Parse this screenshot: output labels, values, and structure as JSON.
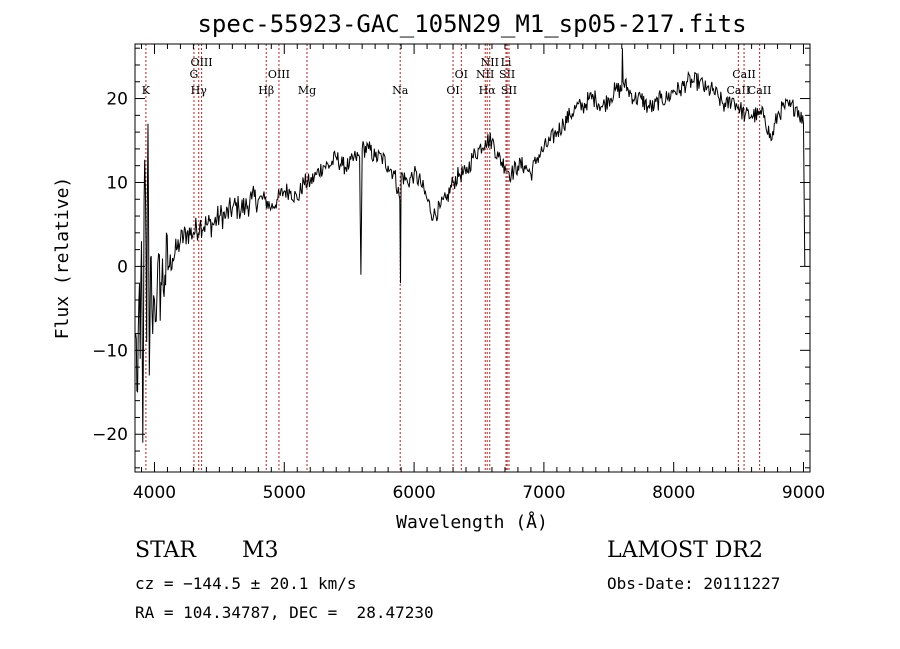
{
  "chart_data": {
    "type": "line",
    "title": "spec-55923-GAC_105N29_M1_sp05-217.fits",
    "xlabel": "Wavelength (Å)",
    "ylabel": "Flux (relative)",
    "xlim": [
      3850,
      9050
    ],
    "ylim": [
      -24.5,
      26.5
    ],
    "x_ticks": [
      4000,
      5000,
      6000,
      7000,
      8000,
      9000
    ],
    "y_ticks": [
      -20,
      -10,
      0,
      10,
      20
    ],
    "grid": false,
    "series": [
      {
        "color": "#000000",
        "x": [
          3855,
          3870,
          3880,
          3890,
          3900,
          3910,
          3920,
          3930,
          3940,
          3950,
          3960,
          3970,
          3980,
          4000,
          4020,
          4050,
          4080,
          4110,
          4140,
          4170,
          4200,
          4250,
          4300,
          4350,
          4400,
          4450,
          4500,
          4550,
          4600,
          4650,
          4700,
          4750,
          4800,
          4850,
          4900,
          4950,
          5000,
          5050,
          5100,
          5150,
          5200,
          5250,
          5300,
          5350,
          5400,
          5450,
          5500,
          5550,
          5580,
          5590,
          5600,
          5650,
          5700,
          5750,
          5800,
          5850,
          5890,
          5895,
          5900,
          5950,
          6000,
          6050,
          6100,
          6150,
          6200,
          6250,
          6300,
          6350,
          6400,
          6450,
          6500,
          6550,
          6600,
          6650,
          6700,
          6750,
          6800,
          6850,
          6900,
          6950,
          7000,
          7050,
          7100,
          7150,
          7200,
          7250,
          7300,
          7350,
          7400,
          7450,
          7500,
          7550,
          7600,
          7605,
          7610,
          7650,
          7700,
          7750,
          7800,
          7850,
          7900,
          7950,
          8000,
          8050,
          8100,
          8150,
          8200,
          8250,
          8300,
          8350,
          8400,
          8450,
          8500,
          8550,
          8600,
          8650,
          8700,
          8750,
          8800,
          8850,
          8900,
          8950,
          9000,
          9010
        ],
        "y": [
          -8,
          -15,
          -4,
          -11,
          3,
          -21,
          8,
          9,
          -9,
          17,
          -13,
          1,
          -5,
          -4,
          -3,
          -2,
          -1,
          0,
          1,
          2,
          3,
          4,
          4,
          5,
          5,
          5,
          6,
          6,
          7,
          7,
          7,
          8,
          8,
          8,
          7,
          8,
          9,
          9,
          8,
          10,
          10,
          11,
          12,
          12,
          13,
          12,
          12,
          13,
          13,
          -1,
          14,
          14,
          13,
          13,
          12,
          11,
          8,
          -2,
          11,
          10,
          11,
          10,
          8,
          6,
          7,
          8,
          10,
          11,
          11,
          13,
          14,
          15,
          15,
          13,
          12,
          11,
          12,
          12,
          11,
          13,
          14,
          15,
          16,
          17,
          18,
          19,
          19,
          20,
          20,
          19,
          20,
          21,
          21,
          26,
          22,
          21,
          20,
          20,
          19,
          19,
          20,
          20,
          21,
          21,
          22,
          22,
          22,
          21,
          21,
          20,
          19,
          20,
          19,
          18,
          18,
          18,
          18,
          15,
          18,
          19,
          19,
          19,
          17,
          0
        ]
      }
    ],
    "spectral_lines": [
      {
        "name": "K",
        "wavelength": 3934
      },
      {
        "name": "Hγ",
        "wavelength": 4341
      },
      {
        "name": "G",
        "wavelength": 4304
      },
      {
        "name": "OIII",
        "wavelength": 4363
      },
      {
        "name": "Hβ",
        "wavelength": 4861
      },
      {
        "name": "OIII",
        "wavelength": 4959
      },
      {
        "name": "Mg",
        "wavelength": 5175
      },
      {
        "name": "Na",
        "wavelength": 5893
      },
      {
        "name": "OI",
        "wavelength": 6300
      },
      {
        "name": "OI",
        "wavelength": 6364
      },
      {
        "name": "Hα",
        "wavelength": 6563
      },
      {
        "name": "NII",
        "wavelength": 6548
      },
      {
        "name": "NII",
        "wavelength": 6583
      },
      {
        "name": "SII",
        "wavelength": 6717
      },
      {
        "name": "Li",
        "wavelength": 6708
      },
      {
        "name": "SII",
        "wavelength": 6731
      },
      {
        "name": "CaII",
        "wavelength": 8498
      },
      {
        "name": "CaII",
        "wavelength": 8542
      },
      {
        "name": "CaII",
        "wavelength": 8662
      }
    ]
  },
  "info": {
    "object_class": "STAR",
    "subclass": "M3",
    "redshift_line": "cz = −144.5 ± 20.1 km/s",
    "coords_line": "RA = 104.34787, DEC =  28.47230",
    "survey": "LAMOST DR2",
    "obs_date": "Obs-Date: 20111227"
  }
}
